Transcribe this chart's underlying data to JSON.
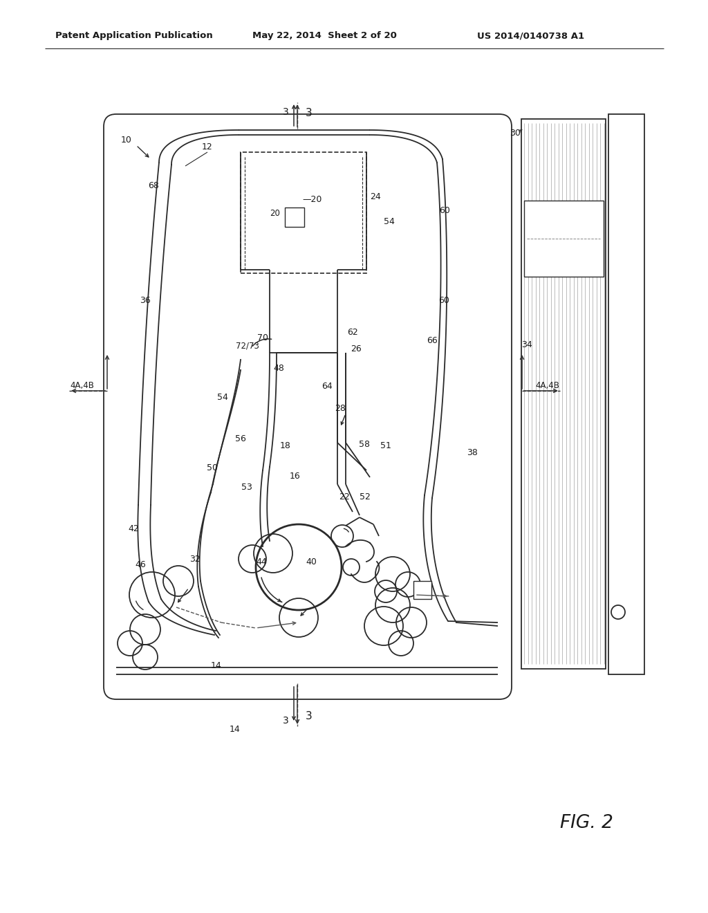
{
  "bg_color": "#ffffff",
  "lc": "#2a2a2a",
  "header1": "Patent Application Publication",
  "header2": "May 22, 2014  Sheet 2 of 20",
  "header3": "US 2014/0140738 A1",
  "fig_label": "FIG. 2"
}
